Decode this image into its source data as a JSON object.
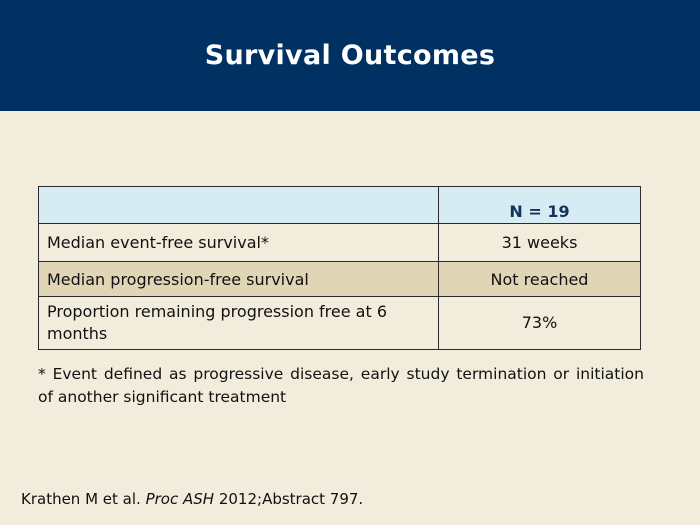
{
  "slide": {
    "title": "Survival Outcomes"
  },
  "table": {
    "header": [
      "",
      "N = 19"
    ],
    "rows": [
      [
        "Median event-free survival*",
        "31 weeks"
      ],
      [
        "Median progression-free survival",
        "Not reached"
      ],
      [
        "Proportion remaining progression free at 6 months",
        "73%"
      ]
    ]
  },
  "footnote": "* Event defined as progressive disease, early study termination or initiation of another significant treatment",
  "reference": {
    "authors": "Krathen M et al.",
    "journal": "Proc ASH",
    "details": "2012;Abstract 797."
  },
  "colors": {
    "header_band": "#003162",
    "background": "#f1ecdc",
    "table_header": "#d7ebf3",
    "row_shaded": "#e0d6b6"
  }
}
